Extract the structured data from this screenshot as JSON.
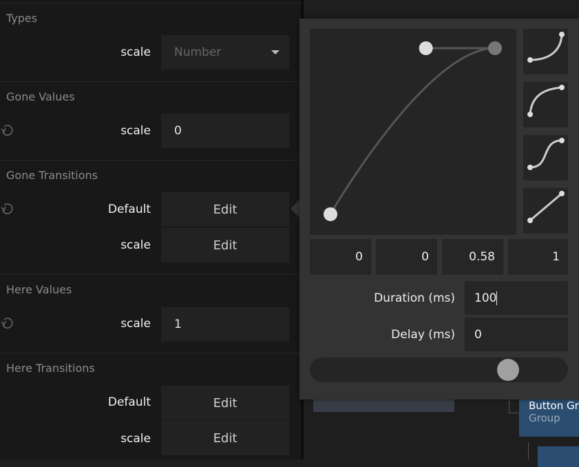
{
  "sections": [
    {
      "title": "Types",
      "rows": [
        {
          "label": "scale",
          "value": "Number",
          "kind": "select"
        }
      ]
    },
    {
      "title": "Gone Values",
      "rows": [
        {
          "label": "scale",
          "value": "0",
          "kind": "input"
        }
      ]
    },
    {
      "title": "Gone Transitions",
      "rows": [
        {
          "label": "Default",
          "value": "Edit",
          "kind": "button"
        },
        {
          "label": "scale",
          "value": "Edit",
          "kind": "button"
        }
      ]
    },
    {
      "title": "Here Values",
      "rows": [
        {
          "label": "scale",
          "value": "1",
          "kind": "input"
        }
      ]
    },
    {
      "title": "Here Transitions",
      "rows": [
        {
          "label": "Default",
          "value": "Edit",
          "kind": "button"
        },
        {
          "label": "scale",
          "value": "Edit",
          "kind": "button"
        }
      ]
    }
  ],
  "tree": {
    "node_title": "Button Gr",
    "node_subtitle": "Group"
  },
  "editor": {
    "bezier": [
      "0",
      "0",
      "0.58",
      "1"
    ],
    "presets": [
      "ease-in",
      "ease-out",
      "ease-in-out",
      "linear"
    ],
    "duration_label": "Duration (ms)",
    "duration": "100",
    "delay_label": "Delay (ms)",
    "delay": "0",
    "slider_progress": 0.85
  },
  "colors": {
    "accent_node": "#2b4e70",
    "popup": "#333333"
  }
}
